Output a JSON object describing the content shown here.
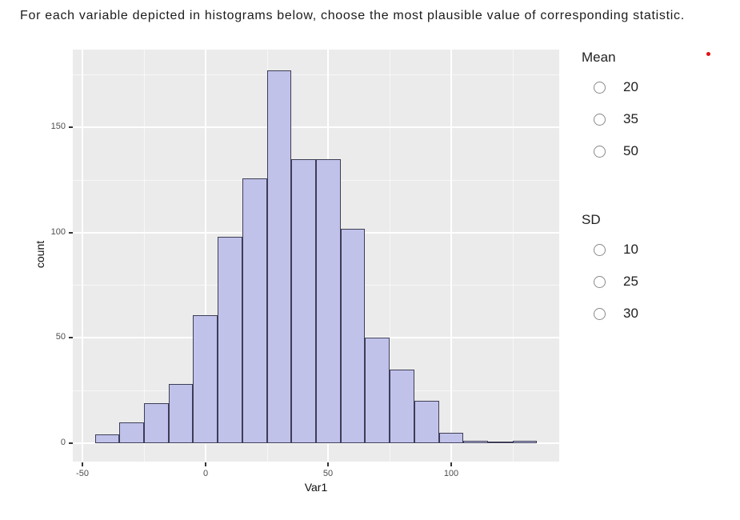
{
  "page": {
    "title": "For each variable depicted in histograms below, choose the most plausible value of corresponding statistic."
  },
  "chart_data": {
    "type": "bar",
    "subtype": "histogram",
    "title": "",
    "xlabel": "Var1",
    "ylabel": "count",
    "bin_width": 10,
    "bin_centers": [
      -40,
      -30,
      -20,
      -10,
      0,
      10,
      20,
      30,
      40,
      50,
      60,
      70,
      80,
      90,
      100,
      110,
      120,
      130
    ],
    "counts": [
      4,
      10,
      19,
      28,
      61,
      98,
      126,
      177,
      135,
      135,
      102,
      50,
      35,
      20,
      5,
      1,
      0,
      1
    ],
    "xlim": [
      -54,
      144
    ],
    "ylim": [
      -8.9,
      186.9
    ],
    "x_ticks": [
      -50,
      0,
      50,
      100
    ],
    "x_minor_ticks": [
      -25,
      25,
      75,
      125
    ],
    "y_ticks": [
      0,
      50,
      100,
      150
    ],
    "y_minor_ticks": [
      25,
      75,
      125,
      175
    ],
    "grid": "major and minor white gridlines on gray panel",
    "legend": "none",
    "colors": {
      "panel_bg": "#ebebeb",
      "bar_fill": "#c1c2ea",
      "bar_stroke": "#3d3d55",
      "gridline": "#ffffff",
      "tick_text": "#4d4d4d",
      "axis_title_text": "#0d0d0d"
    }
  },
  "questions": [
    {
      "label": "Mean",
      "options": [
        "20",
        "35",
        "50"
      ],
      "selected": null
    },
    {
      "label": "SD",
      "options": [
        "10",
        "25",
        "30"
      ],
      "selected": null
    }
  ],
  "marker": {
    "name": "required-indicator",
    "color": "#e01212"
  }
}
